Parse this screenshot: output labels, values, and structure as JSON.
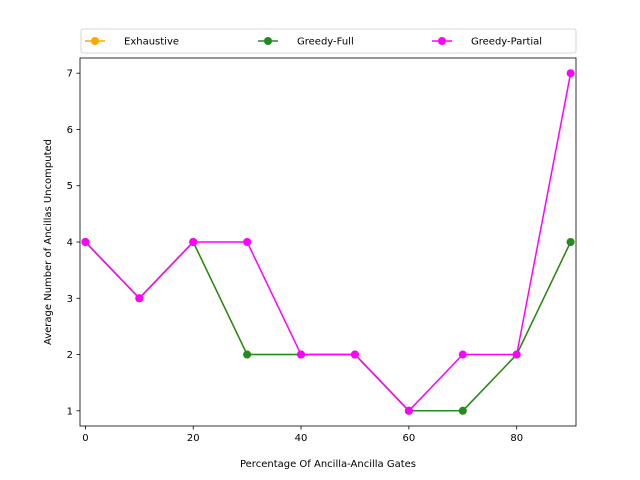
{
  "chart_data": {
    "type": "line",
    "title": "",
    "xlabel": "Percentage Of Ancilla-Ancilla Gates",
    "ylabel": "Average Number of Ancillas Uncomputed",
    "x": [
      0,
      10,
      20,
      30,
      40,
      50,
      60,
      70,
      80,
      90
    ],
    "xlim": [
      -1,
      91
    ],
    "ylim": [
      0.73,
      7.27
    ],
    "xticks": [
      0,
      20,
      40,
      60,
      80
    ],
    "yticks": [
      1,
      2,
      3,
      4,
      5,
      6,
      7
    ],
    "grid": false,
    "legend_position": "top, above plot",
    "series": [
      {
        "name": "Exhaustive",
        "color": "#ffa500",
        "marker": "circle",
        "values": [
          4,
          3,
          4,
          2,
          2,
          2,
          1,
          1,
          2,
          4
        ]
      },
      {
        "name": "Greedy-Full",
        "color": "#228b22",
        "marker": "circle",
        "values": [
          4,
          3,
          4,
          2,
          2,
          2,
          1,
          1,
          2,
          4
        ]
      },
      {
        "name": "Greedy-Partial",
        "color": "#ff00ff",
        "marker": "circle",
        "values": [
          4,
          3,
          4,
          4,
          2,
          2,
          1,
          2,
          2,
          7
        ]
      }
    ]
  }
}
